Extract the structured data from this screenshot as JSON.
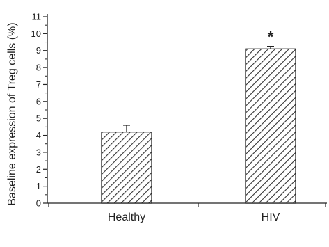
{
  "chart_data": {
    "type": "bar",
    "title": "",
    "xlabel": "",
    "ylabel": "Baseline expression of Treg cells (%)",
    "ylim": [
      0,
      11
    ],
    "yticks": [
      0,
      1,
      2,
      3,
      4,
      5,
      6,
      7,
      8,
      9,
      10,
      11
    ],
    "yticks_text": [
      "0",
      "1",
      "2",
      "3",
      "4",
      "5",
      "6",
      "7",
      "8",
      "9",
      "10",
      "11"
    ],
    "grid": false,
    "categories": [
      "Healthy",
      "HIV"
    ],
    "values": [
      4.2,
      9.1
    ],
    "error_plus": [
      0.4,
      0.15
    ],
    "annotations": [
      "",
      "*"
    ],
    "bar_fill": "diagonal-hatch",
    "bar_color": "#333333"
  }
}
